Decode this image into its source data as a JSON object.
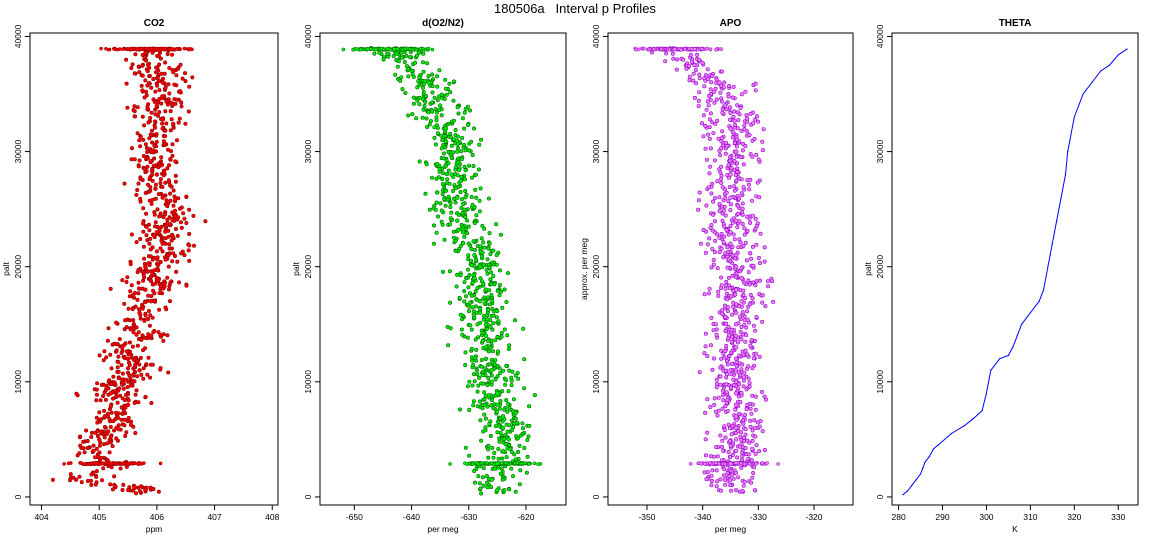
{
  "figure": {
    "title": "180506a   Interval p Profiles"
  },
  "chart_data": [
    {
      "type": "scatter",
      "title": "CO2",
      "xlabel": "ppm",
      "ylabel": "palt",
      "xlim": [
        403.8,
        408.1
      ],
      "ylim": [
        -700,
        40300
      ],
      "x_ticks": [
        404,
        405,
        406,
        407,
        408
      ],
      "y_ticks": [
        0,
        10000,
        20000,
        30000,
        40000
      ],
      "grid": false,
      "colors": {
        "fill": "#ff0000",
        "outline": "#8b0000"
      },
      "series": [
        {
          "x": [
            405.8,
            404.6,
            405.2,
            404.9,
            405.0,
            405.3,
            405.1,
            405.5,
            405.2,
            405.4,
            405.7,
            405.5,
            405.4,
            405.9,
            405.6,
            405.7,
            405.9,
            405.8,
            406.0,
            405.8,
            406.2,
            406.1,
            406.0,
            406.3,
            406.1,
            406.0,
            405.9,
            406.1,
            406.0,
            406.1,
            405.9
          ],
          "y": [
            600,
            1500,
            2900,
            4000,
            5000,
            6000,
            7000,
            8000,
            9000,
            10000,
            11000,
            12000,
            13000,
            14000,
            15000,
            16000,
            17000,
            18000,
            19000,
            20000,
            21000,
            22000,
            23000,
            24000,
            26000,
            28000,
            30000,
            32000,
            34000,
            36000,
            38900
          ]
        }
      ]
    },
    {
      "type": "scatter",
      "title": "d(O2/N2)",
      "xlabel": "per meg",
      "ylabel": "palt",
      "xlim": [
        -656,
        -613
      ],
      "ylim": [
        -700,
        40300
      ],
      "x_ticks": [
        -650,
        -640,
        -630,
        -620
      ],
      "y_ticks": [
        0,
        10000,
        20000,
        30000,
        40000
      ],
      "grid": false,
      "colors": {
        "fill": "#00ee00",
        "outline": "#006400"
      },
      "series": [
        {
          "x": [
            -625,
            -626,
            -625,
            -624,
            -623,
            -624,
            -624,
            -625,
            -625,
            -626,
            -626,
            -627,
            -627,
            -627,
            -627,
            -628,
            -628,
            -627,
            -629,
            -628,
            -629,
            -630,
            -631,
            -632,
            -632,
            -633,
            -632,
            -634,
            -635,
            -637,
            -643
          ],
          "y": [
            600,
            1500,
            2900,
            4000,
            5000,
            6000,
            7000,
            8000,
            9000,
            10000,
            11000,
            12000,
            13000,
            14000,
            15000,
            16000,
            17000,
            18000,
            19000,
            20000,
            21000,
            22000,
            23000,
            24000,
            26000,
            28000,
            30000,
            32000,
            34000,
            36000,
            38900
          ]
        }
      ]
    },
    {
      "type": "scatter",
      "title": "APO",
      "xlabel": "per meg",
      "ylabel": "approx. per meg",
      "xlim": [
        -357,
        -313
      ],
      "ylim": [
        -700,
        40300
      ],
      "x_ticks": [
        -350,
        -340,
        -330,
        -320
      ],
      "y_ticks": [
        0,
        10000,
        20000,
        30000,
        40000
      ],
      "grid": false,
      "colors": {
        "fill": "#ee82ee",
        "outline": "#9400d3"
      },
      "series": [
        {
          "x": [
            -334,
            -336,
            -335,
            -334,
            -334,
            -334,
            -334,
            -334,
            -334,
            -334,
            -334,
            -334,
            -334,
            -334,
            -334,
            -334,
            -333,
            -334,
            -333,
            -334,
            -334,
            -335,
            -335,
            -334,
            -335,
            -335,
            -334,
            -335,
            -336,
            -337,
            -345
          ],
          "y": [
            600,
            1500,
            2900,
            4000,
            5000,
            6000,
            7000,
            8000,
            9000,
            10000,
            11000,
            12000,
            13000,
            14000,
            15000,
            16000,
            17000,
            18000,
            19000,
            20000,
            21000,
            22000,
            23000,
            24000,
            26000,
            28000,
            30000,
            32000,
            34000,
            36000,
            38900
          ]
        }
      ]
    },
    {
      "type": "line",
      "title": "THETA",
      "xlabel": "K",
      "ylabel": "palt",
      "xlim": [
        278.5,
        334.5
      ],
      "ylim": [
        -700,
        40300
      ],
      "x_ticks": [
        280,
        290,
        300,
        310,
        320,
        330
      ],
      "y_ticks": [
        0,
        10000,
        20000,
        30000,
        40000
      ],
      "grid": false,
      "colors": {
        "line": "#0000ff"
      },
      "series": [
        {
          "x": [
            281,
            282,
            283,
            284,
            285,
            285.5,
            286,
            287,
            288,
            289,
            292,
            295,
            297,
            299,
            300,
            301,
            303,
            305,
            306,
            307,
            308,
            310,
            312,
            313,
            314,
            314.5,
            315,
            315.5,
            316,
            317,
            318,
            318.5,
            319,
            320,
            321,
            322,
            324,
            326,
            328,
            330,
            332
          ],
          "y": [
            200,
            500,
            1000,
            1500,
            2000,
            2500,
            3000,
            3500,
            4200,
            4500,
            5500,
            6200,
            6800,
            7500,
            9000,
            11000,
            12000,
            12300,
            13000,
            14000,
            15000,
            16000,
            17000,
            18000,
            20000,
            21000,
            22000,
            23000,
            24000,
            26000,
            28000,
            30000,
            31000,
            33000,
            34000,
            35000,
            36000,
            37000,
            37500,
            38400,
            38900
          ]
        }
      ]
    }
  ]
}
